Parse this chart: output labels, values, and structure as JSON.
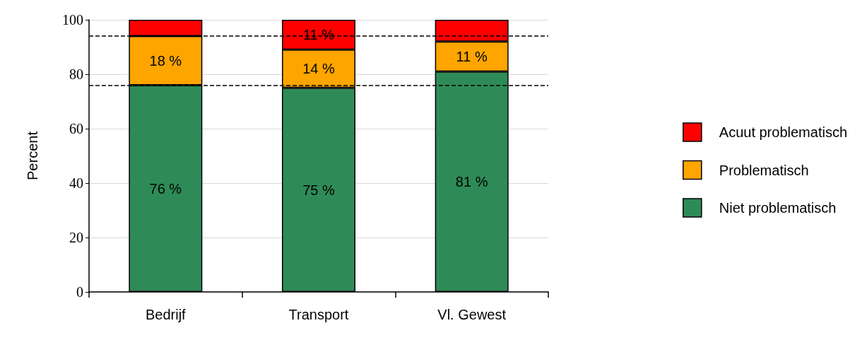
{
  "chart_data": {
    "type": "bar",
    "stacked": true,
    "ylabel": "Percent",
    "categories": [
      "Bedrijf",
      "Transport",
      "Vl. Gewest"
    ],
    "series": [
      {
        "name": "Niet problematisch",
        "color": "#2e8b57",
        "values": [
          76,
          75,
          81
        ],
        "value_labels": [
          "76 %",
          "75 %",
          "81 %"
        ]
      },
      {
        "name": "Problematisch",
        "color": "#ffa500",
        "values": [
          18,
          14,
          11
        ],
        "value_labels": [
          "18 %",
          "14 %",
          "11 %"
        ]
      },
      {
        "name": "Acuut problematisch",
        "color": "#ff0000",
        "values": [
          6,
          11,
          8
        ],
        "value_labels": [
          null,
          "11 %",
          null
        ]
      }
    ],
    "ylim": [
      0,
      100
    ],
    "yticks": [
      0,
      20,
      40,
      60,
      80,
      100
    ],
    "grid": "y",
    "legend": "right",
    "ref_lines": [
      {
        "axis": "y",
        "value": 94,
        "color": "#000000",
        "line_style": "dashed"
      },
      {
        "axis": "y",
        "value": 76,
        "color": "#000000",
        "line_style": "dashed"
      }
    ]
  }
}
